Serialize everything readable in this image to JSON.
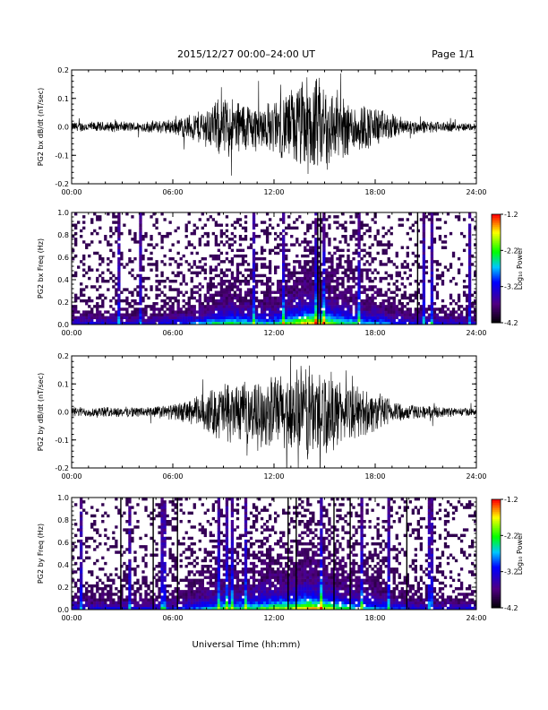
{
  "header": {
    "title": "2015/12/27  00:00–24:00 UT",
    "page": "Page 1/1"
  },
  "x_axis_label": "Universal Time (hh:mm)",
  "colorbar": {
    "label": "Log₁₀ Power",
    "ticks": [
      "-1.2",
      "-2.2",
      "-3.2",
      "-4.2"
    ],
    "colors": [
      "#ff0000",
      "#ffff00",
      "#00ff00",
      "#00ffff",
      "#0000ff",
      "#6000a0",
      "#000000"
    ]
  },
  "chart_data": [
    {
      "type": "line",
      "ylabel": "PG2 bx dB/dt (nT/sec)",
      "xlim": [
        "00:00",
        "24:00"
      ],
      "ylim": [
        -0.2,
        0.2
      ],
      "x_ticks": [
        "00:00",
        "06:00",
        "12:00",
        "18:00",
        "24:00"
      ],
      "y_ticks": [
        "0.2",
        "0.1",
        "0.0",
        "-0.1",
        "-0.2"
      ],
      "envelope": {
        "hour": [
          0,
          2,
          4,
          6,
          7,
          8,
          9,
          10,
          11,
          12,
          13,
          14,
          15,
          16,
          17,
          18,
          19,
          20,
          22,
          24
        ],
        "amplitude": [
          0.02,
          0.02,
          0.02,
          0.03,
          0.05,
          0.08,
          0.12,
          0.11,
          0.09,
          0.1,
          0.15,
          0.2,
          0.18,
          0.12,
          0.1,
          0.08,
          0.05,
          0.03,
          0.02,
          0.015
        ]
      }
    },
    {
      "type": "heatmap",
      "ylabel": "PG2 bx Freq (Hz)",
      "xlim": [
        "00:00",
        "24:00"
      ],
      "ylim": [
        0.0,
        1.0
      ],
      "x_ticks": [
        "00:00",
        "06:00",
        "12:00",
        "18:00",
        "24:00"
      ],
      "y_ticks": [
        "1.0",
        "0.8",
        "0.6",
        "0.4",
        "0.2",
        "0.0"
      ],
      "colorbar_range": [
        -4.2,
        -1.2
      ]
    },
    {
      "type": "line",
      "ylabel": "PG2 by dB/dt (nT/sec)",
      "xlim": [
        "00:00",
        "24:00"
      ],
      "ylim": [
        -0.2,
        0.2
      ],
      "x_ticks": [
        "00:00",
        "06:00",
        "12:00",
        "18:00",
        "24:00"
      ],
      "y_ticks": [
        "0.2",
        "0.1",
        "0.0",
        "-0.1",
        "-0.2"
      ],
      "envelope": {
        "hour": [
          0,
          2,
          4,
          6,
          7,
          8,
          9,
          10,
          11,
          12,
          13,
          14,
          15,
          16,
          17,
          18,
          19,
          20,
          22,
          24
        ],
        "amplitude": [
          0.02,
          0.02,
          0.02,
          0.03,
          0.05,
          0.08,
          0.12,
          0.11,
          0.12,
          0.15,
          0.16,
          0.2,
          0.18,
          0.12,
          0.1,
          0.08,
          0.05,
          0.03,
          0.02,
          0.015
        ]
      }
    },
    {
      "type": "heatmap",
      "ylabel": "PG2 by Freq (Hz)",
      "xlim": [
        "00:00",
        "24:00"
      ],
      "ylim": [
        0.0,
        1.0
      ],
      "x_ticks": [
        "00:00",
        "06:00",
        "12:00",
        "18:00",
        "24:00"
      ],
      "y_ticks": [
        "1.0",
        "0.8",
        "0.6",
        "0.4",
        "0.2",
        "0.0"
      ],
      "colorbar_range": [
        -4.2,
        -1.2
      ]
    }
  ]
}
